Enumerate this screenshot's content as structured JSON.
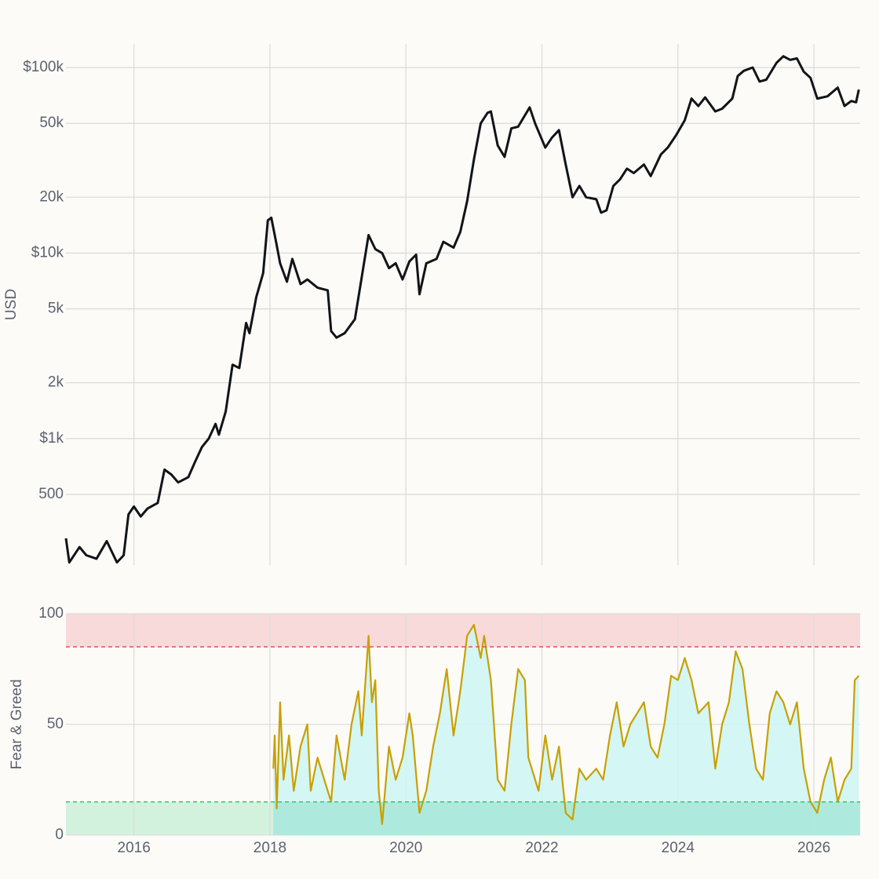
{
  "chart_data": [
    {
      "type": "line",
      "y_label": "USD",
      "log_y": true,
      "grid": true,
      "show_xtick_labels": false,
      "xlim": [
        2015.0,
        2026.68
      ],
      "xticks": [
        2016,
        2018,
        2020,
        2022,
        2024,
        2026
      ],
      "ylim": [
        208,
        134000
      ],
      "yticks": [
        {
          "value": 500,
          "label": "500"
        },
        {
          "value": 1000,
          "label": "$1k"
        },
        {
          "value": 2000,
          "label": "2k"
        },
        {
          "value": 5000,
          "label": "5k"
        },
        {
          "value": 10000,
          "label": "$10k"
        },
        {
          "value": 20000,
          "label": "20k"
        },
        {
          "value": 50000,
          "label": "50k"
        },
        {
          "value": 100000,
          "label": "$100k"
        }
      ],
      "x": [
        2015.0,
        2015.05,
        2015.2,
        2015.3,
        2015.45,
        2015.6,
        2015.75,
        2015.85,
        2015.92,
        2016.0,
        2016.1,
        2016.2,
        2016.35,
        2016.45,
        2016.55,
        2016.65,
        2016.8,
        2016.9,
        2017.0,
        2017.1,
        2017.2,
        2017.25,
        2017.35,
        2017.45,
        2017.55,
        2017.65,
        2017.7,
        2017.8,
        2017.9,
        2017.97,
        2018.02,
        2018.1,
        2018.15,
        2018.25,
        2018.33,
        2018.45,
        2018.55,
        2018.7,
        2018.85,
        2018.9,
        2018.98,
        2019.1,
        2019.25,
        2019.35,
        2019.45,
        2019.55,
        2019.65,
        2019.75,
        2019.85,
        2019.95,
        2020.05,
        2020.15,
        2020.2,
        2020.3,
        2020.45,
        2020.55,
        2020.7,
        2020.8,
        2020.9,
        2021.0,
        2021.1,
        2021.2,
        2021.25,
        2021.35,
        2021.45,
        2021.55,
        2021.65,
        2021.82,
        2021.9,
        2022.05,
        2022.15,
        2022.25,
        2022.35,
        2022.45,
        2022.55,
        2022.65,
        2022.8,
        2022.87,
        2022.95,
        2023.05,
        2023.15,
        2023.25,
        2023.35,
        2023.5,
        2023.6,
        2023.75,
        2023.85,
        2023.97,
        2024.1,
        2024.2,
        2024.3,
        2024.4,
        2024.55,
        2024.65,
        2024.8,
        2024.88,
        2024.97,
        2025.1,
        2025.2,
        2025.3,
        2025.45,
        2025.55,
        2025.65,
        2025.75,
        2025.85,
        2025.95,
        2026.05,
        2026.2,
        2026.35,
        2026.45,
        2026.55,
        2026.62,
        2026.66
      ],
      "series": [
        {
          "color": "#111418",
          "values": [
            290,
            215,
            260,
            235,
            225,
            280,
            215,
            235,
            390,
            430,
            380,
            420,
            450,
            680,
            640,
            580,
            620,
            750,
            900,
            1000,
            1200,
            1050,
            1400,
            2500,
            2400,
            4200,
            3700,
            5800,
            7800,
            15000,
            15500,
            11000,
            8800,
            7000,
            9300,
            6800,
            7200,
            6500,
            6300,
            3800,
            3500,
            3700,
            4400,
            7400,
            12500,
            10500,
            10000,
            8300,
            8800,
            7200,
            9000,
            9800,
            6000,
            8800,
            9300,
            11500,
            10700,
            13000,
            19000,
            32000,
            50000,
            57000,
            58000,
            38000,
            33000,
            47000,
            48000,
            61000,
            50000,
            37000,
            42000,
            46000,
            30000,
            20000,
            23000,
            20000,
            19500,
            16500,
            17000,
            23000,
            25000,
            28500,
            27000,
            30000,
            26000,
            34000,
            37000,
            43000,
            52000,
            68000,
            62000,
            69000,
            58000,
            60000,
            68000,
            90000,
            96000,
            100000,
            84000,
            86000,
            106000,
            115000,
            110000,
            112000,
            95000,
            88000,
            68000,
            70000,
            78000,
            62000,
            66000,
            65000,
            76000
          ]
        }
      ]
    },
    {
      "type": "line",
      "y_label": "Fear & Greed",
      "grid": true,
      "show_xtick_labels": true,
      "fill": "#cdf5f3",
      "xlim": [
        2015.0,
        2026.68
      ],
      "xticks": [
        2016,
        2018,
        2020,
        2022,
        2024,
        2026
      ],
      "ylim": [
        0,
        100
      ],
      "yticks": [
        0,
        50,
        100
      ],
      "reference_lines": [
        {
          "value": 85,
          "color": "#e0535a",
          "band": "#f8dada"
        },
        {
          "value": 15,
          "color": "#3cc46a",
          "band": "#d3f2de"
        }
      ],
      "x": [
        2018.05,
        2018.07,
        2018.1,
        2018.15,
        2018.2,
        2018.28,
        2018.35,
        2018.45,
        2018.55,
        2018.6,
        2018.7,
        2018.8,
        2018.9,
        2018.98,
        2019.1,
        2019.2,
        2019.3,
        2019.35,
        2019.45,
        2019.5,
        2019.55,
        2019.6,
        2019.65,
        2019.75,
        2019.85,
        2019.95,
        2020.05,
        2020.1,
        2020.2,
        2020.3,
        2020.4,
        2020.5,
        2020.6,
        2020.7,
        2020.8,
        2020.9,
        2021.0,
        2021.1,
        2021.15,
        2021.25,
        2021.35,
        2021.45,
        2021.55,
        2021.65,
        2021.75,
        2021.8,
        2021.95,
        2022.05,
        2022.15,
        2022.25,
        2022.35,
        2022.45,
        2022.55,
        2022.65,
        2022.8,
        2022.9,
        2023.0,
        2023.1,
        2023.2,
        2023.3,
        2023.4,
        2023.5,
        2023.6,
        2023.7,
        2023.8,
        2023.9,
        2024.0,
        2024.1,
        2024.2,
        2024.3,
        2024.45,
        2024.55,
        2024.65,
        2024.75,
        2024.85,
        2024.95,
        2025.05,
        2025.15,
        2025.25,
        2025.35,
        2025.45,
        2025.55,
        2025.65,
        2025.75,
        2025.85,
        2025.95,
        2026.05,
        2026.15,
        2026.25,
        2026.35,
        2026.45,
        2026.55,
        2026.6,
        2026.66
      ],
      "series": [
        {
          "color": "#c9a000",
          "values": [
            30,
            45,
            12,
            60,
            25,
            45,
            20,
            40,
            50,
            20,
            35,
            25,
            15,
            45,
            25,
            50,
            65,
            45,
            90,
            60,
            70,
            20,
            5,
            40,
            25,
            35,
            55,
            45,
            10,
            20,
            40,
            55,
            75,
            45,
            65,
            90,
            95,
            80,
            90,
            70,
            25,
            20,
            50,
            75,
            70,
            35,
            20,
            45,
            25,
            40,
            10,
            7,
            30,
            25,
            30,
            25,
            45,
            60,
            40,
            50,
            55,
            60,
            40,
            35,
            50,
            72,
            70,
            80,
            70,
            55,
            60,
            30,
            50,
            60,
            83,
            75,
            50,
            30,
            25,
            55,
            65,
            60,
            50,
            60,
            30,
            15,
            10,
            25,
            35,
            15,
            25,
            30,
            70,
            72
          ]
        }
      ]
    }
  ]
}
